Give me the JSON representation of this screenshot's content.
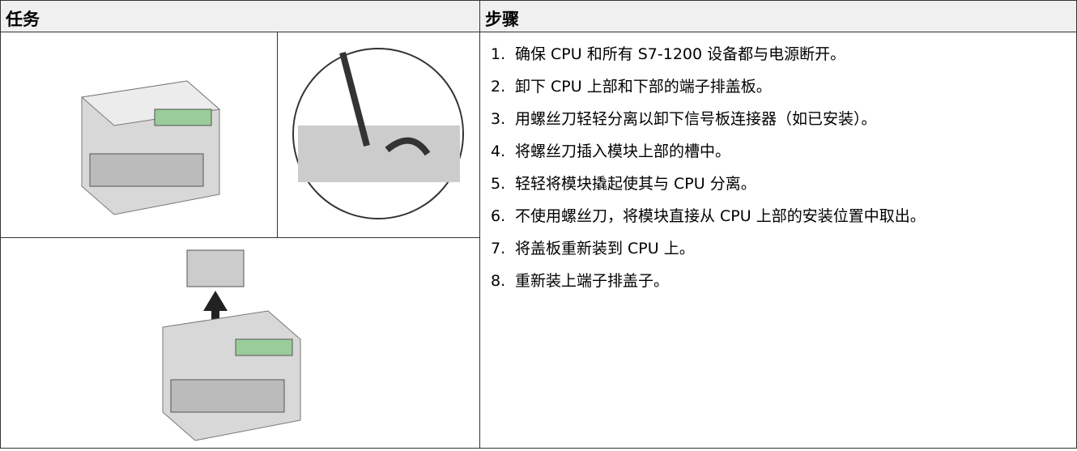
{
  "table": {
    "header": [
      "任务",
      "步骤"
    ],
    "steps": [
      {
        "number": "1.",
        "text": "确保 CPU 和所有 S7-1200 设备都与电源断开。"
      },
      {
        "number": "2.",
        "text": "卸下 CPU 上部和下部的端子排盖板。"
      },
      {
        "number": "3.",
        "text": "用螺丝刀轻轻分离以卸下信号板连接器（如已安装）。"
      },
      {
        "number": "4.",
        "text": "将螺丝刀插入模块上部的槽中。"
      },
      {
        "number": "5.",
        "text": "轻轻将模块撬起使其与 CPU 分离。"
      },
      {
        "number": "6.",
        "text": "不使用螺丝刀，将模块直接从 CPU 上部的安装位置中取出。"
      },
      {
        "number": "7.",
        "text": "将盖板重新装到 CPU 上。"
      },
      {
        "number": "8.",
        "text": "重新装上端子排盖子。"
      }
    ]
  }
}
